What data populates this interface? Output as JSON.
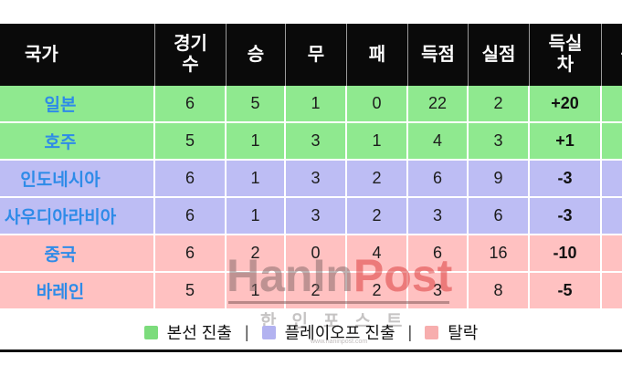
{
  "colors": {
    "advance_green": "#8fe98f",
    "playoff_purple": "#bdbdf4",
    "eliminated_pink": "#ffc1c1",
    "country_blue": "#2e8be8",
    "header_bg": "#0a0a0a"
  },
  "table": {
    "headers": {
      "country": "국가",
      "played": "경기\n수",
      "win": "승",
      "draw": "무",
      "loss": "패",
      "goals_for": "득점",
      "goals_against": "실점",
      "goal_diff": "득실\n차",
      "points": "승점"
    },
    "rows": [
      {
        "country": "일본",
        "played": "6",
        "win": "5",
        "draw": "1",
        "loss": "0",
        "goals_for": "22",
        "goals_against": "2",
        "goal_diff": "+20",
        "status": "advance"
      },
      {
        "country": "호주",
        "played": "5",
        "win": "1",
        "draw": "3",
        "loss": "1",
        "goals_for": "4",
        "goals_against": "3",
        "goal_diff": "+1",
        "status": "advance"
      },
      {
        "country": "인도네시아",
        "played": "6",
        "win": "1",
        "draw": "3",
        "loss": "2",
        "goals_for": "6",
        "goals_against": "9",
        "goal_diff": "-3",
        "status": "playoff"
      },
      {
        "country": "사우디아라비아",
        "played": "6",
        "win": "1",
        "draw": "3",
        "loss": "2",
        "goals_for": "3",
        "goals_against": "6",
        "goal_diff": "-3",
        "status": "playoff"
      },
      {
        "country": "중국",
        "played": "6",
        "win": "2",
        "draw": "0",
        "loss": "4",
        "goals_for": "6",
        "goals_against": "16",
        "goal_diff": "-10",
        "status": "eliminated"
      },
      {
        "country": "바레인",
        "played": "5",
        "win": "1",
        "draw": "2",
        "loss": "2",
        "goals_for": "3",
        "goals_against": "8",
        "goal_diff": "-5",
        "status": "eliminated"
      }
    ]
  },
  "legend": {
    "advance": "본선 진출",
    "playoff": "플레이오프 진출",
    "eliminated": "탈락",
    "separator": "|"
  },
  "watermark": {
    "brand_part1": "HanIn",
    "brand_part2": "Post",
    "korean": "한인포스트",
    "url": "www.haninpost.com"
  }
}
